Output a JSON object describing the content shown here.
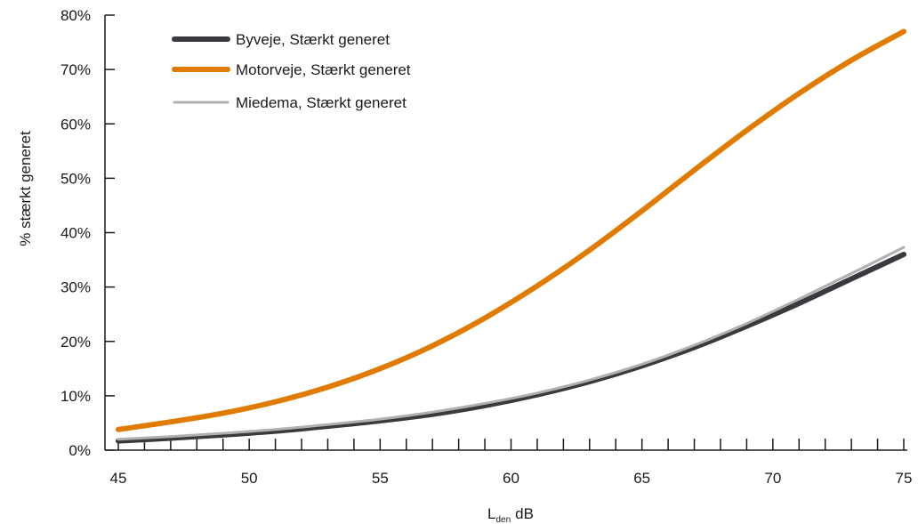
{
  "chart_data": {
    "type": "line",
    "title": "",
    "xlabel_main": "L",
    "xlabel_sub": "den",
    "xlabel_unit": "dB",
    "ylabel": "% stærkt generet",
    "xlim": [
      45,
      75
    ],
    "ylim": [
      0,
      80
    ],
    "x_ticks": [
      "45",
      "50",
      "55",
      "60",
      "65",
      "70",
      "75"
    ],
    "y_ticks": [
      "0%",
      "10%",
      "20%",
      "30%",
      "40%",
      "50%",
      "60%",
      "70%",
      "80%"
    ],
    "legend_position": "top-left",
    "grid": false,
    "series": [
      {
        "name": "Byveje, Stærkt generet",
        "color": "#3a3a3e",
        "x": [
          45,
          47,
          49,
          51,
          53,
          55,
          57,
          59,
          61,
          63,
          65,
          67,
          69,
          71,
          73,
          75
        ],
        "values": [
          1.7,
          2.2,
          2.8,
          3.5,
          4.4,
          5.4,
          6.6,
          8.2,
          10.2,
          12.6,
          15.5,
          18.9,
          22.8,
          27.0,
          31.5,
          36.0
        ]
      },
      {
        "name": "Motorveje, Stærkt generet",
        "color": "#e07b00",
        "x": [
          45,
          47,
          49,
          51,
          53,
          55,
          57,
          59,
          61,
          63,
          65,
          67,
          69,
          71,
          73,
          75
        ],
        "values": [
          3.8,
          5.2,
          6.8,
          8.9,
          11.6,
          15.0,
          19.2,
          24.3,
          30.2,
          36.8,
          44.0,
          51.5,
          58.8,
          65.6,
          71.7,
          77.0
        ]
      },
      {
        "name": "Miedema, Stærkt generet",
        "color": "#b0b0b0",
        "x": [
          45,
          47,
          49,
          51,
          53,
          55,
          57,
          59,
          61,
          63,
          65,
          67,
          69,
          71,
          73,
          75
        ],
        "values": [
          2.0,
          2.5,
          3.1,
          3.8,
          4.7,
          5.7,
          7.0,
          8.6,
          10.5,
          12.9,
          15.8,
          19.3,
          23.3,
          27.8,
          32.5,
          37.3
        ]
      }
    ]
  }
}
